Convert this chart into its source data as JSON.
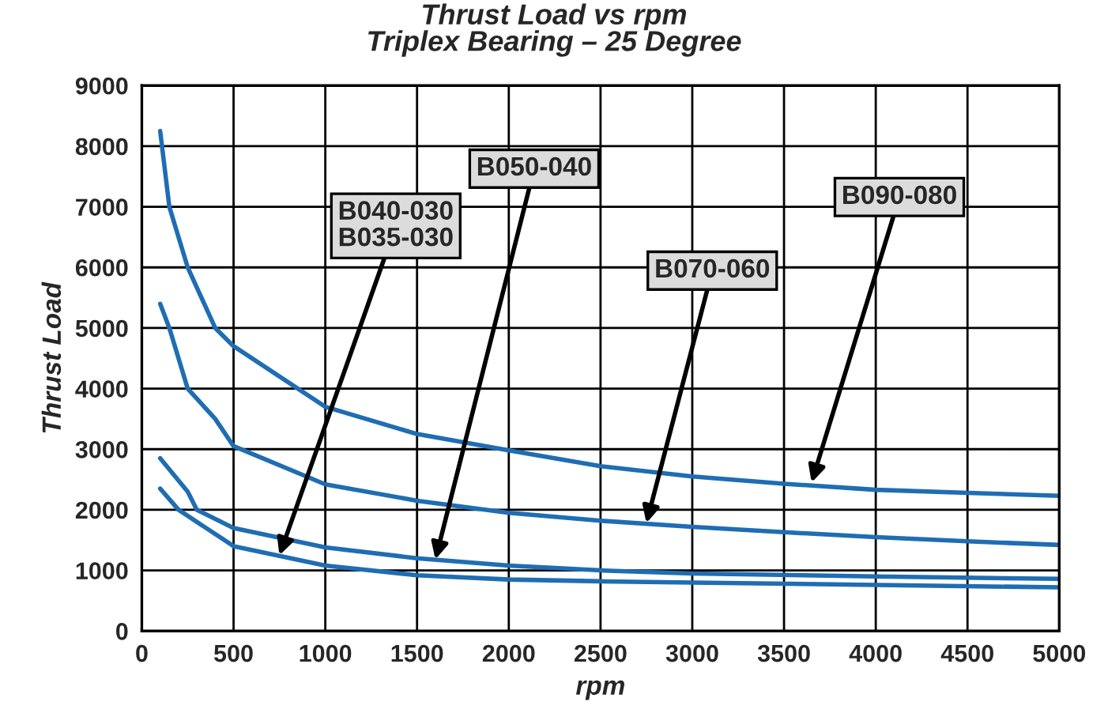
{
  "chart_data": {
    "type": "line",
    "title": "Thrust Load vs rpm\nTriplex Bearing – 25 Degree",
    "xlabel": "rpm",
    "ylabel": "Thrust Load",
    "xlim": [
      0,
      5000
    ],
    "xticks": [
      0,
      500,
      1000,
      1500,
      2000,
      2500,
      3000,
      3500,
      4000,
      4500,
      5000
    ],
    "ylim": [
      0,
      9000
    ],
    "yticks": [
      0,
      1000,
      2000,
      3000,
      4000,
      5000,
      6000,
      7000,
      8000,
      9000
    ],
    "grid": true,
    "legend": false,
    "marker": "none",
    "line_style": "solid",
    "series": [
      {
        "color": "#1f6db3",
        "x": [
          100,
          150,
          250,
          400,
          500,
          1000,
          1500,
          2000,
          2500,
          3000,
          3500,
          4000,
          4500,
          5000
        ],
        "values": [
          8250,
          7000,
          6000,
          5000,
          4700,
          3700,
          3250,
          2980,
          2720,
          2550,
          2430,
          2330,
          2280,
          2230
        ]
      },
      {
        "color": "#1f6db3",
        "x": [
          100,
          150,
          250,
          400,
          500,
          1000,
          1500,
          2000,
          2500,
          3000,
          3500,
          4000,
          4500,
          5000
        ],
        "values": [
          5400,
          5000,
          4000,
          3500,
          3050,
          2420,
          2150,
          1950,
          1820,
          1720,
          1630,
          1550,
          1480,
          1420
        ]
      },
      {
        "color": "#1f6db3",
        "x": [
          100,
          250,
          300,
          500,
          1000,
          1500,
          2000,
          2500,
          3000,
          4000,
          5000
        ],
        "values": [
          2850,
          2300,
          2000,
          1700,
          1380,
          1200,
          1080,
          1000,
          950,
          900,
          860
        ]
      },
      {
        "color": "#1f6db3",
        "x": [
          100,
          200,
          500,
          1000,
          1500,
          2000,
          2500,
          3000,
          4000,
          5000
        ],
        "values": [
          2350,
          2000,
          1400,
          1080,
          920,
          850,
          820,
          800,
          760,
          720
        ]
      }
    ],
    "annotations": [
      {
        "text": "B090-080",
        "x": 3650,
        "y": 2450
      },
      {
        "text": "B070-060",
        "x": 2750,
        "y": 1780
      },
      {
        "text": "B050-040",
        "x": 1600,
        "y": 1180
      },
      {
        "text": "B040-030\nB035-030",
        "x": 750,
        "y": 1250
      }
    ]
  }
}
